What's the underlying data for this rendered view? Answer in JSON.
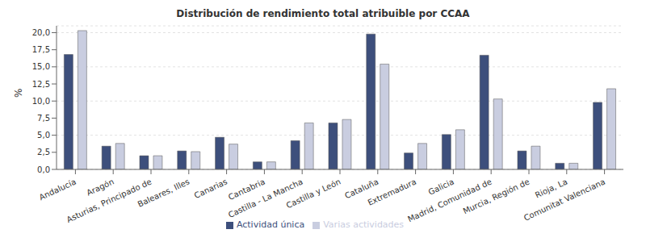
{
  "chart_data": {
    "type": "bar",
    "title": "Distribución de rendimiento total atribuible por CCAA",
    "y_label": "%",
    "categories": [
      "Andalucía",
      "Aragón",
      "Asturias, Principado de",
      "Baleares, Illes",
      "Canarias",
      "Cantabria",
      "Castilla - La Mancha",
      "Castilla y León",
      "Cataluña",
      "Extremadura",
      "Galicia",
      "Madrid, Comunidad de",
      "Murcia, Región de",
      "Rioja, La",
      "Comunitat Valenciana"
    ],
    "series": [
      {
        "name": "Actividad única",
        "color": "#3d4f7c",
        "values": [
          16.8,
          3.4,
          2.0,
          2.7,
          4.7,
          1.1,
          4.2,
          6.8,
          19.8,
          2.4,
          5.1,
          16.7,
          2.7,
          0.9,
          9.8
        ]
      },
      {
        "name": "Varias actividades",
        "color": "#c9cde0",
        "values": [
          20.3,
          3.8,
          2.0,
          2.6,
          3.7,
          1.1,
          6.8,
          7.3,
          15.4,
          3.8,
          5.8,
          10.3,
          3.4,
          0.9,
          11.8
        ]
      }
    ],
    "ylim": [
      0,
      21
    ],
    "yticks": [
      {
        "value": 0,
        "label": "0,0"
      },
      {
        "value": 2.5,
        "label": "2,5"
      },
      {
        "value": 5,
        "label": "5,0"
      },
      {
        "value": 7.5,
        "label": "7,5"
      },
      {
        "value": 10,
        "label": "10,0"
      },
      {
        "value": 12.5,
        "label": "12,5"
      },
      {
        "value": 15,
        "label": "15,0"
      },
      {
        "value": 17.5,
        "label": "17,5"
      },
      {
        "value": 20,
        "label": "20,0"
      }
    ],
    "grid": true,
    "legend": "bottom"
  }
}
